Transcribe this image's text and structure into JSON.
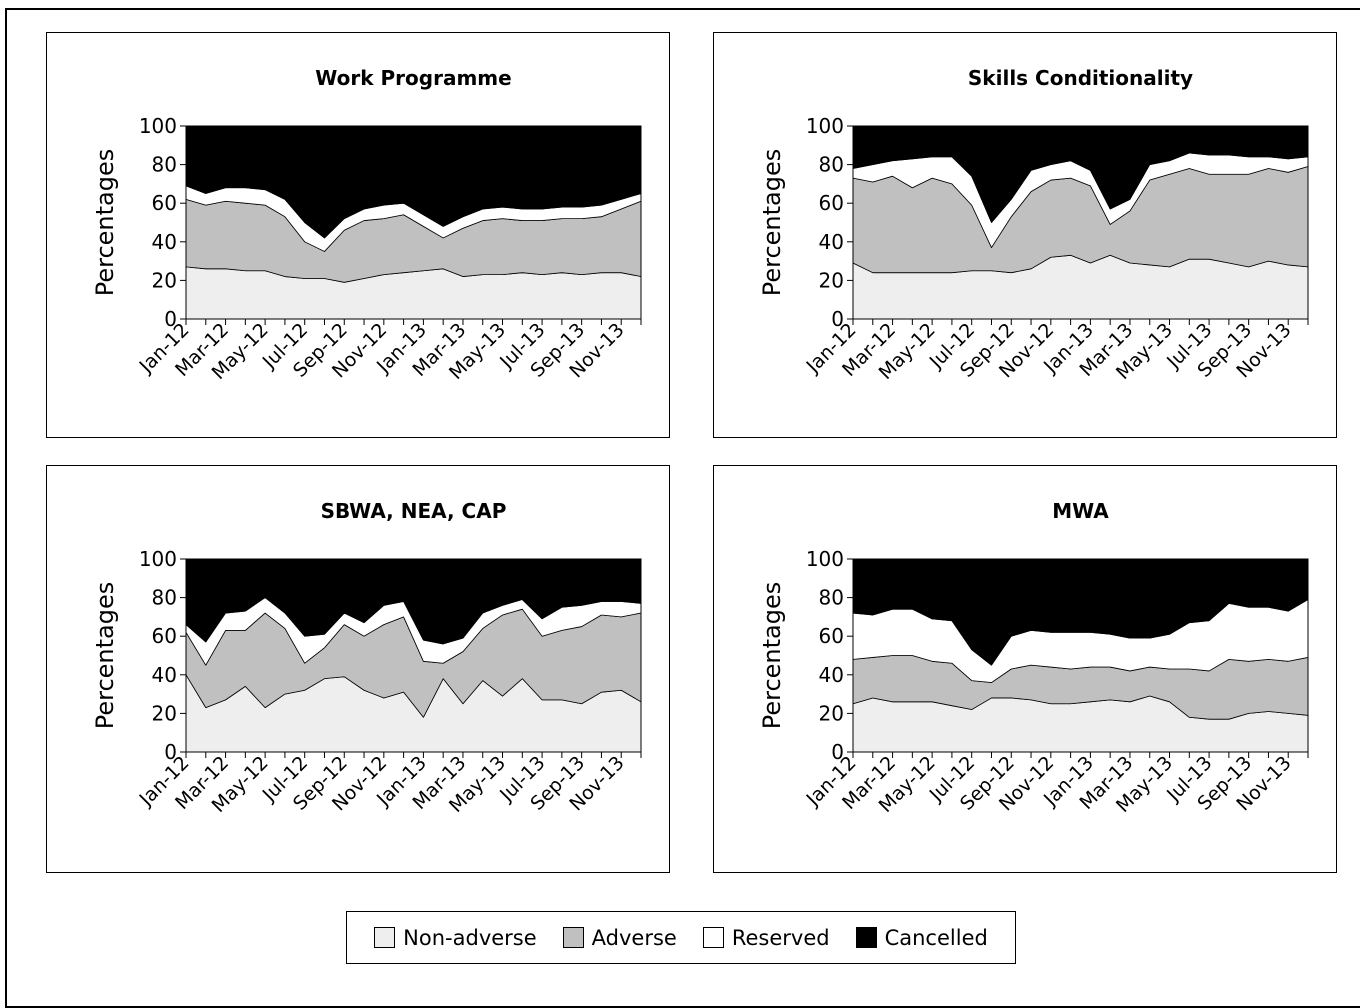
{
  "chart_data": [
    {
      "type": "area",
      "title": "Work Programme",
      "ylabel": "Percentages",
      "ylim": [
        0,
        100
      ],
      "yticks": [
        0,
        20,
        40,
        60,
        80,
        100
      ],
      "x": [
        "Jan-12",
        "Feb-12",
        "Mar-12",
        "Apr-12",
        "May-12",
        "Jun-12",
        "Jul-12",
        "Aug-12",
        "Sep-12",
        "Oct-12",
        "Nov-12",
        "Dec-12",
        "Jan-13",
        "Feb-13",
        "Mar-13",
        "Apr-13",
        "May-13",
        "Jun-13",
        "Jul-13",
        "Aug-13",
        "Sep-13",
        "Oct-13",
        "Nov-13",
        "Dec-13"
      ],
      "xtick_labels": [
        "Jan-12",
        "Mar-12",
        "May-12",
        "Jul-12",
        "Sep-12",
        "Nov-12",
        "Jan-13",
        "Mar-13",
        "May-13",
        "Jul-13",
        "Sep-13",
        "Nov-13"
      ],
      "stacked": true,
      "series": [
        {
          "name": "Non-adverse",
          "values": [
            27,
            26,
            26,
            25,
            25,
            22,
            21,
            21,
            19,
            21,
            23,
            24,
            25,
            26,
            22,
            23,
            23,
            24,
            23,
            24,
            23,
            24,
            24,
            22
          ]
        },
        {
          "name": "Adverse",
          "values": [
            35,
            33,
            35,
            35,
            34,
            31,
            19,
            14,
            27,
            30,
            29,
            30,
            23,
            16,
            25,
            28,
            29,
            27,
            28,
            28,
            29,
            29,
            33,
            39
          ]
        },
        {
          "name": "Reserved",
          "values": [
            7,
            6,
            7,
            8,
            8,
            9,
            10,
            7,
            6,
            6,
            7,
            6,
            6,
            6,
            6,
            6,
            6,
            6,
            6,
            6,
            6,
            6,
            5,
            4
          ]
        },
        {
          "name": "Cancelled",
          "values": [
            31,
            35,
            32,
            32,
            33,
            38,
            50,
            58,
            48,
            43,
            41,
            40,
            46,
            52,
            47,
            43,
            42,
            43,
            43,
            42,
            42,
            41,
            38,
            35
          ]
        }
      ]
    },
    {
      "type": "area",
      "title": "Skills Conditionality",
      "ylabel": "Percentages",
      "ylim": [
        0,
        100
      ],
      "yticks": [
        0,
        20,
        40,
        60,
        80,
        100
      ],
      "x": [
        "Jan-12",
        "Feb-12",
        "Mar-12",
        "Apr-12",
        "May-12",
        "Jun-12",
        "Jul-12",
        "Aug-12",
        "Sep-12",
        "Oct-12",
        "Nov-12",
        "Dec-12",
        "Jan-13",
        "Feb-13",
        "Mar-13",
        "Apr-13",
        "May-13",
        "Jun-13",
        "Jul-13",
        "Aug-13",
        "Sep-13",
        "Oct-13",
        "Nov-13",
        "Dec-13"
      ],
      "xtick_labels": [
        "Jan-12",
        "Mar-12",
        "May-12",
        "Jul-12",
        "Sep-12",
        "Nov-12",
        "Jan-13",
        "Mar-13",
        "May-13",
        "Jul-13",
        "Sep-13",
        "Nov-13"
      ],
      "stacked": true,
      "series": [
        {
          "name": "Non-adverse",
          "values": [
            29,
            24,
            24,
            24,
            24,
            24,
            25,
            25,
            24,
            26,
            32,
            33,
            29,
            33,
            29,
            28,
            27,
            31,
            31,
            29,
            27,
            30,
            28,
            27
          ]
        },
        {
          "name": "Adverse",
          "values": [
            44,
            47,
            50,
            44,
            49,
            46,
            34,
            12,
            29,
            40,
            40,
            40,
            40,
            16,
            27,
            44,
            48,
            47,
            44,
            46,
            48,
            48,
            48,
            52
          ]
        },
        {
          "name": "Reserved",
          "values": [
            5,
            9,
            8,
            15,
            11,
            14,
            15,
            13,
            9,
            11,
            8,
            9,
            8,
            8,
            6,
            8,
            7,
            8,
            10,
            10,
            9,
            6,
            7,
            5
          ]
        },
        {
          "name": "Cancelled",
          "values": [
            22,
            20,
            18,
            17,
            16,
            16,
            26,
            50,
            38,
            23,
            20,
            18,
            23,
            43,
            38,
            20,
            18,
            14,
            15,
            15,
            16,
            16,
            17,
            16
          ]
        }
      ]
    },
    {
      "type": "area",
      "title": "SBWA, NEA, CAP",
      "ylabel": "Percentages",
      "ylim": [
        0,
        100
      ],
      "yticks": [
        0,
        20,
        40,
        60,
        80,
        100
      ],
      "x": [
        "Jan-12",
        "Feb-12",
        "Mar-12",
        "Apr-12",
        "May-12",
        "Jun-12",
        "Jul-12",
        "Aug-12",
        "Sep-12",
        "Oct-12",
        "Nov-12",
        "Dec-12",
        "Jan-13",
        "Feb-13",
        "Mar-13",
        "Apr-13",
        "May-13",
        "Jun-13",
        "Jul-13",
        "Aug-13",
        "Sep-13",
        "Oct-13",
        "Nov-13",
        "Dec-13"
      ],
      "xtick_labels": [
        "Jan-12",
        "Mar-12",
        "May-12",
        "Jul-12",
        "Sep-12",
        "Nov-12",
        "Jan-13",
        "Mar-13",
        "May-13",
        "Jul-13",
        "Sep-13",
        "Nov-13"
      ],
      "stacked": true,
      "series": [
        {
          "name": "Non-adverse",
          "values": [
            40,
            23,
            27,
            34,
            23,
            30,
            32,
            38,
            39,
            32,
            28,
            31,
            18,
            38,
            25,
            37,
            29,
            38,
            27,
            27,
            25,
            31,
            32,
            26
          ]
        },
        {
          "name": "Adverse",
          "values": [
            22,
            22,
            36,
            29,
            49,
            34,
            14,
            16,
            27,
            28,
            38,
            39,
            29,
            8,
            27,
            27,
            42,
            36,
            33,
            36,
            40,
            40,
            38,
            46
          ]
        },
        {
          "name": "Reserved",
          "values": [
            4,
            12,
            9,
            10,
            8,
            8,
            14,
            7,
            6,
            7,
            10,
            8,
            11,
            10,
            7,
            8,
            5,
            5,
            9,
            12,
            11,
            7,
            8,
            5
          ]
        },
        {
          "name": "Cancelled",
          "values": [
            34,
            43,
            28,
            27,
            20,
            28,
            40,
            39,
            28,
            33,
            24,
            22,
            42,
            44,
            41,
            28,
            24,
            21,
            31,
            25,
            24,
            22,
            22,
            23
          ]
        }
      ]
    },
    {
      "type": "area",
      "title": "MWA",
      "ylabel": "Percentages",
      "ylim": [
        0,
        100
      ],
      "yticks": [
        0,
        20,
        40,
        60,
        80,
        100
      ],
      "x": [
        "Jan-12",
        "Feb-12",
        "Mar-12",
        "Apr-12",
        "May-12",
        "Jun-12",
        "Jul-12",
        "Aug-12",
        "Sep-12",
        "Oct-12",
        "Nov-12",
        "Dec-12",
        "Jan-13",
        "Feb-13",
        "Mar-13",
        "Apr-13",
        "May-13",
        "Jun-13",
        "Jul-13",
        "Aug-13",
        "Sep-13",
        "Oct-13",
        "Nov-13",
        "Dec-13"
      ],
      "xtick_labels": [
        "Jan-12",
        "Mar-12",
        "May-12",
        "Jul-12",
        "Sep-12",
        "Nov-12",
        "Jan-13",
        "Mar-13",
        "May-13",
        "Jul-13",
        "Sep-13",
        "Nov-13"
      ],
      "stacked": true,
      "series": [
        {
          "name": "Non-adverse",
          "values": [
            25,
            28,
            26,
            26,
            26,
            24,
            22,
            28,
            28,
            27,
            25,
            25,
            26,
            27,
            26,
            29,
            26,
            18,
            17,
            17,
            20,
            21,
            20,
            19
          ]
        },
        {
          "name": "Adverse",
          "values": [
            23,
            21,
            24,
            24,
            21,
            22,
            15,
            8,
            15,
            18,
            19,
            18,
            18,
            17,
            16,
            15,
            17,
            25,
            25,
            31,
            27,
            27,
            27,
            30
          ]
        },
        {
          "name": "Reserved",
          "values": [
            24,
            22,
            24,
            24,
            22,
            22,
            16,
            9,
            17,
            18,
            18,
            19,
            18,
            17,
            17,
            15,
            18,
            24,
            26,
            29,
            28,
            27,
            26,
            30
          ]
        },
        {
          "name": "Cancelled",
          "values": [
            28,
            29,
            26,
            26,
            31,
            32,
            47,
            55,
            40,
            37,
            38,
            38,
            38,
            39,
            41,
            41,
            39,
            33,
            32,
            23,
            25,
            25,
            27,
            21
          ]
        }
      ]
    }
  ],
  "legend": {
    "items": [
      {
        "label": "Non-adverse",
        "color": "#eeeeee"
      },
      {
        "label": "Adverse",
        "color": "#c0c0c0"
      },
      {
        "label": "Reserved",
        "color": "#ffffff"
      },
      {
        "label": "Cancelled",
        "color": "#000000"
      }
    ]
  }
}
